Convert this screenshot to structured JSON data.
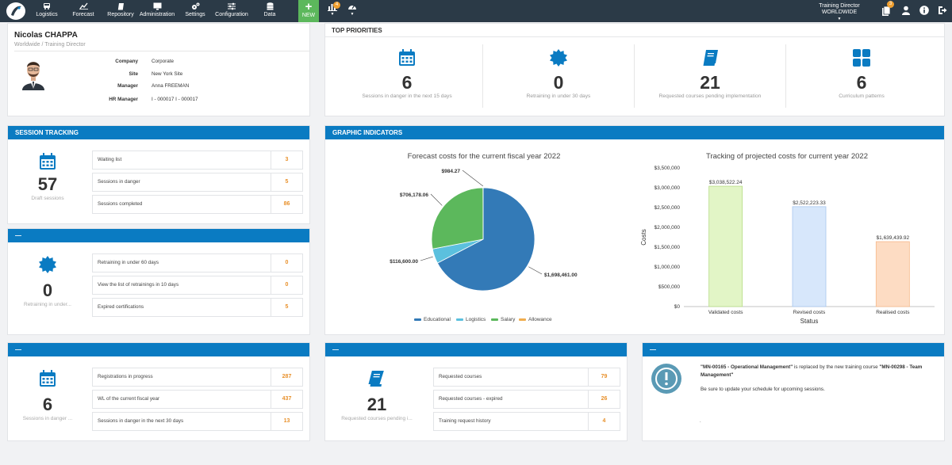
{
  "nav": {
    "items": [
      {
        "label": "Logistics",
        "icon": "truck-icon"
      },
      {
        "label": "Forecast",
        "icon": "line-chart-icon"
      },
      {
        "label": "Repository",
        "icon": "book-icon"
      },
      {
        "label": "Administration",
        "icon": "monitor-icon"
      },
      {
        "label": "Settings",
        "icon": "gears-icon"
      },
      {
        "label": "Configuration",
        "icon": "sliders-icon"
      },
      {
        "label": "Data",
        "icon": "database-icon"
      }
    ],
    "new_label": "NEW",
    "stats_badge": "4",
    "role": "Training Director",
    "scope": "WORLDWIDE",
    "notifications_badge": "3"
  },
  "profile": {
    "name": "Nicolas CHAPPA",
    "subtitle": "Worldwide / Training Director",
    "fields": [
      {
        "key": "Company",
        "value": "Corporate"
      },
      {
        "key": "Site",
        "value": "New York Site"
      },
      {
        "key": "Manager",
        "value": "Anna FREEMAN"
      },
      {
        "key": "HR Manager",
        "value": "I - 000017 I - 000017"
      }
    ]
  },
  "priorities": {
    "title": "TOP PRIORITIES",
    "items": [
      {
        "value": "6",
        "caption": "Sessions in danger in the next 15 days",
        "icon": "calendar-icon"
      },
      {
        "value": "0",
        "caption": "Retraining in under 30 days",
        "icon": "badge-icon"
      },
      {
        "value": "21",
        "caption": "Requested courses pending implementation",
        "icon": "book-icon"
      },
      {
        "value": "6",
        "caption": "Curriculum patterns",
        "icon": "grid-icon"
      }
    ]
  },
  "session_tracking": {
    "title": "SESSION TRACKING",
    "value": "57",
    "caption": "Draft sessions",
    "rows": [
      {
        "label": "Waiting list",
        "value": "3"
      },
      {
        "label": "Sessions in danger",
        "value": "5"
      },
      {
        "label": "Sessions completed",
        "value": "86"
      }
    ]
  },
  "retraining": {
    "title": "—",
    "value": "0",
    "caption": "Retraining in under...",
    "rows": [
      {
        "label": "Retraining in under 60 days",
        "value": "0"
      },
      {
        "label": "View the list of retrainings in 10 days",
        "value": "0"
      },
      {
        "label": "Expired certifications",
        "value": "5"
      }
    ]
  },
  "sessions_danger": {
    "title": "—",
    "value": "6",
    "caption": "Sessions in danger ...",
    "rows": [
      {
        "label": "Registrations in progress",
        "value": "287"
      },
      {
        "label": "WL of the current fiscal year",
        "value": "437"
      },
      {
        "label": "Sessions in danger in the next 30 days",
        "value": "13"
      }
    ]
  },
  "requested": {
    "title": "—",
    "value": "21",
    "caption": "Requested courses pending i...",
    "rows": [
      {
        "label": "Requested courses",
        "value": "79"
      },
      {
        "label": "Requested courses - expired",
        "value": "26"
      },
      {
        "label": "Training request history",
        "value": "4"
      }
    ]
  },
  "notice": {
    "title": "—",
    "code_old": "\"MN-00165 - Operational Management\"",
    "mid_text": " is replaced by the new training course ",
    "code_new": "\"MN-00298 - Team Management\"",
    "sub": "Be sure to update your schedule for upcoming sessions.",
    "dot": "."
  },
  "graphic": {
    "title": "GRAPHIC INDICATORS"
  },
  "colors": {
    "primary": "#0a7bc2",
    "nav": "#2b3a47",
    "accent": "#e8902a",
    "new": "#5cb85c"
  },
  "chart_data": [
    {
      "type": "pie",
      "title": "Forecast costs for the current fiscal year 2022",
      "categories": [
        "Educational",
        "Logistics",
        "Salary",
        "Allowance"
      ],
      "values": [
        1698461.0,
        116600.0,
        706178.06,
        984.27
      ],
      "data_labels": [
        "$1,698,461.00",
        "$116,600.00",
        "$706,178.06",
        "$984.27"
      ],
      "colors": [
        "#337ab7",
        "#5bc0de",
        "#5cb85c",
        "#f0ad4e"
      ],
      "legend": "bottom"
    },
    {
      "type": "bar",
      "title": "Tracking of projected costs for current year 2022",
      "categories": [
        "Validated costs",
        "Revised costs",
        "Realised costs"
      ],
      "values": [
        3038522.24,
        2522223.33,
        1639439.92
      ],
      "data_labels": [
        "$3,038,522.24",
        "$2,522,223.33",
        "$1,639,439.92"
      ],
      "colors": [
        "#e2f5c6",
        "#d7e7fb",
        "#fddcc3"
      ],
      "xlabel": "Status",
      "ylabel": "Costs",
      "ylim": [
        0,
        3500000
      ],
      "yticks": [
        "$0",
        "$500,000",
        "$1,000,000",
        "$1,500,000",
        "$2,000,000",
        "$2,500,000",
        "$3,000,000",
        "$3,500,000"
      ]
    }
  ]
}
